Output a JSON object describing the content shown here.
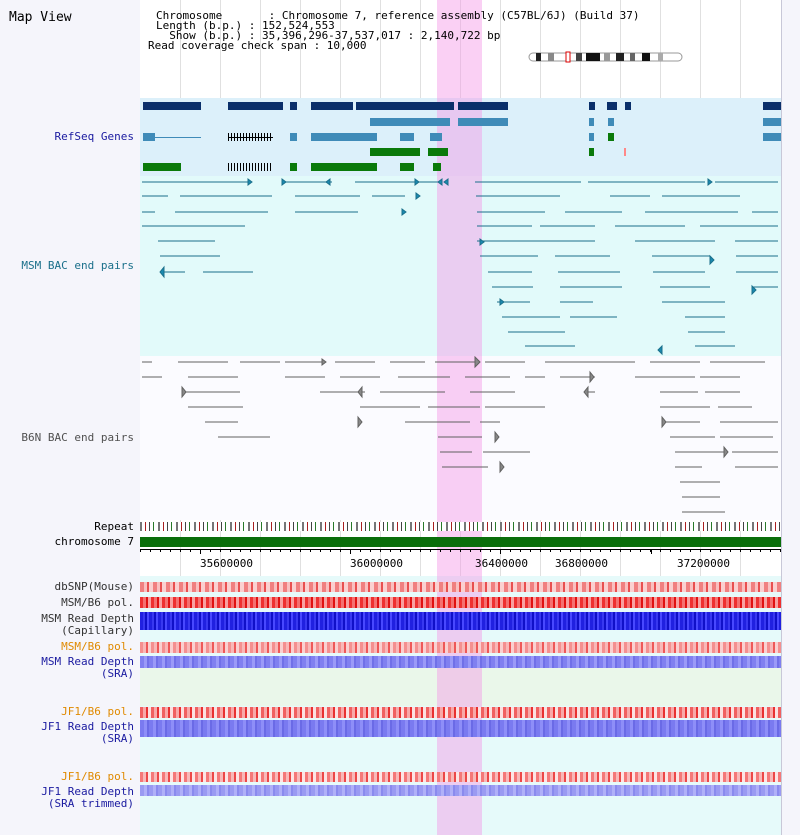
{
  "page": {
    "title": "Map View"
  },
  "header": {
    "chromosome_line": "Chromosome       : Chromosome 7, reference assembly (C57BL/6J) (Build 37)",
    "length_line": "Length (b.p.) : 152,524,553",
    "show_line": "  Show (b.p.) : 35,396,296-37,537,017 : 2,140,722 bp",
    "coverage_line": "Read coverage check span : 10,000"
  },
  "tracks": {
    "refseq": {
      "label": "RefSeq Genes",
      "color": "#1a1aa0"
    },
    "msm_bac": {
      "label": "MSM BAC end pairs",
      "color": "#1a6f8a"
    },
    "b6n_bac": {
      "label": "B6N BAC end pairs",
      "color": "#505050"
    },
    "repeat": {
      "label": "Repeat"
    },
    "chromosome": {
      "label": "chromosome 7"
    },
    "dbsnp": {
      "label": "dbSNP(Mouse)"
    },
    "msm_b6_pol_1": {
      "label": "MSM/B6 pol."
    },
    "msm_read_depth_cap": {
      "label1": "MSM Read Depth",
      "label2": "(Capillary)"
    },
    "msm_b6_pol_2": {
      "label": "MSM/B6 pol."
    },
    "msm_read_depth_sra": {
      "label1": "MSM Read Depth",
      "label2": "(SRA)"
    },
    "jf1_b6_pol_1": {
      "label": "JF1/B6 pol."
    },
    "jf1_read_depth_sra": {
      "label1": "JF1 Read Depth",
      "label2": "(SRA)"
    },
    "jf1_b6_pol_2": {
      "label": "JF1/B6 pol."
    },
    "jf1_read_depth_trim": {
      "label1": "JF1 Read Depth",
      "label2": "(SRA trimmed)"
    }
  },
  "axis": {
    "ticks": [
      "35600000",
      "36000000",
      "36400000",
      "36800000",
      "37200000"
    ]
  },
  "colors": {
    "refseq_dark": "#0a2f6a",
    "refseq_mid": "#3f8bb8",
    "refseq_green": "#0a7a0a",
    "highlight": "#f6a6ee",
    "orange_label": "#e08a00",
    "blue_label": "#1a1aa0"
  }
}
